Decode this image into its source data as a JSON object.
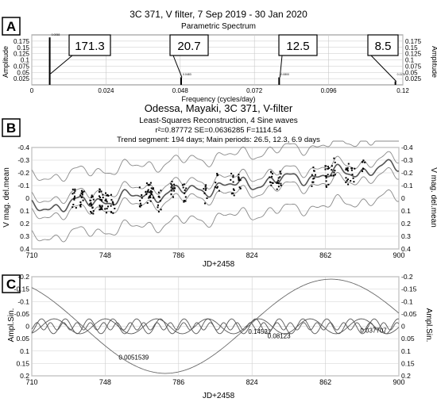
{
  "chart_data": [
    {
      "panel": "A",
      "type": "bar",
      "title": "3C 371, V filter, 7 Sep 2019 - 30 Jan 2020",
      "subtitle": "Parametric Spectrum",
      "xlabel": "Frequency (cycles/day)",
      "ylabel": "Amplitude",
      "xlim": [
        0,
        0.12
      ],
      "ylim": [
        0,
        0.2
      ],
      "xticks": [
        "0",
        "0.024",
        "0.048",
        "0.072",
        "0.096",
        "0.12"
      ],
      "yticks": [
        "0.025",
        "0.05",
        "0.075",
        "0.1",
        "0.125",
        "0.15",
        "0.175"
      ],
      "peaks": [
        {
          "x": 0.0058,
          "y": 0.19,
          "small_label": "0.0058",
          "callout": "171.3"
        },
        {
          "x": 0.0483,
          "y": 0.03,
          "small_label": "0.0483",
          "callout": "20.7"
        },
        {
          "x": 0.08,
          "y": 0.03,
          "small_label": "0.0800",
          "callout": "12.5"
        },
        {
          "x": 0.1176,
          "y": 0.014,
          "small_label": "0.1176",
          "callout": "8.5"
        }
      ]
    },
    {
      "panel": "B",
      "type": "line",
      "title": "Odessa, Mayaki, 3C 371, V-filter",
      "subtitle": "Least-Squares Reconstruction, 4 Sine waves",
      "stats": "r²=0.87772  SE=0.0636285  F=1114.54",
      "trend_note": "Trend segment: 194 days; Main periods: 26.5, 12.3, 6.9 days",
      "xlabel": "JD+2458",
      "ylabel": "V mag. del.mean",
      "xlim": [
        710,
        900
      ],
      "ylim": [
        0.4,
        -0.4
      ],
      "xticks": [
        "710",
        "748",
        "786",
        "824",
        "862",
        "900"
      ],
      "yticks": [
        "-0.4",
        "-0.3",
        "-0.2",
        "-0.1",
        "0",
        "0.1",
        "0.2",
        "0.3",
        "0.4"
      ],
      "trend": {
        "start": 0.08,
        "end": -0.25
      },
      "components": [
        {
          "period": 171.3,
          "amp": 0.19,
          "t0": 822
        },
        {
          "period": 26.5,
          "amp": 0.03,
          "t0": 715
        },
        {
          "period": 12.3,
          "amp": 0.03,
          "t0": 712
        },
        {
          "period": 6.9,
          "amp": 0.015,
          "t0": 711
        }
      ],
      "band_se": 0.0636,
      "observation_clusters": [
        {
          "jd": 732,
          "n": 12
        },
        {
          "jd": 736,
          "n": 14
        },
        {
          "jd": 741,
          "n": 16
        },
        {
          "jd": 746,
          "n": 20
        },
        {
          "jd": 749,
          "n": 12
        },
        {
          "jd": 752,
          "n": 10
        },
        {
          "jd": 766,
          "n": 8
        },
        {
          "jd": 770,
          "n": 12
        },
        {
          "jd": 772,
          "n": 14
        },
        {
          "jd": 776,
          "n": 10
        },
        {
          "jd": 783,
          "n": 14
        },
        {
          "jd": 789,
          "n": 10
        },
        {
          "jd": 800,
          "n": 8
        },
        {
          "jd": 806,
          "n": 8
        },
        {
          "jd": 814,
          "n": 10
        },
        {
          "jd": 818,
          "n": 12
        },
        {
          "jd": 834,
          "n": 10
        },
        {
          "jd": 838,
          "n": 14
        },
        {
          "jd": 856,
          "n": 10
        },
        {
          "jd": 863,
          "n": 14
        },
        {
          "jd": 866,
          "n": 10
        },
        {
          "jd": 873,
          "n": 12
        },
        {
          "jd": 876,
          "n": 8
        },
        {
          "jd": 882,
          "n": 8
        }
      ]
    },
    {
      "panel": "C",
      "type": "line",
      "xlabel": "JD+2458",
      "ylabel": "Ampl.Sin.",
      "xlim": [
        710,
        900
      ],
      "ylim": [
        0.2,
        -0.2
      ],
      "xticks": [
        "710",
        "748",
        "786",
        "824",
        "862",
        "900"
      ],
      "yticks": [
        "-0.2",
        "-0.15",
        "-0.1",
        "-0.05",
        "0",
        "0.05",
        "0.1",
        "0.15",
        "0.2"
      ],
      "series": [
        {
          "period": 171.3,
          "amp": 0.19,
          "t0": 822,
          "label": "0.0051539"
        },
        {
          "period": 26.5,
          "amp": 0.03,
          "t0": 715,
          "label": "0.14531"
        },
        {
          "period": 12.3,
          "amp": 0.03,
          "t0": 712,
          "label": "0.08123"
        },
        {
          "period": 6.9,
          "amp": 0.015,
          "t0": 711,
          "label": "0.037707"
        }
      ]
    }
  ]
}
